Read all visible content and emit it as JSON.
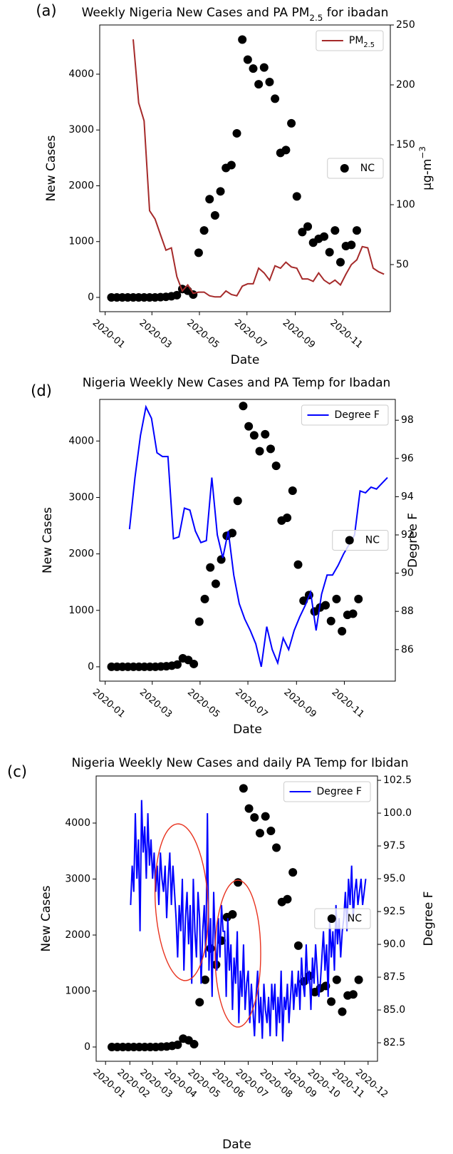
{
  "chart_data": [
    {
      "type": "line",
      "panel_label": "(a)",
      "title": "Weekly Nigeria New Cases and PA PM2.5 for ibadan",
      "xlabel": "Date",
      "ylabel": "New Cases",
      "y2label": "μg-m−3",
      "xlim": [
        -7,
        366
      ],
      "xticks": [
        {
          "value": 0,
          "label": "2020-01"
        },
        {
          "value": 60,
          "label": "2020-03"
        },
        {
          "value": 121,
          "label": "2020-05"
        },
        {
          "value": 182,
          "label": "2020-07"
        },
        {
          "value": 244,
          "label": "2020-09"
        },
        {
          "value": 305,
          "label": "2020-11"
        }
      ],
      "ylim": [
        -256,
        4882
      ],
      "yticks": [
        0,
        1000,
        2000,
        3000,
        4000
      ],
      "y2lim": [
        10.7,
        250
      ],
      "y2ticks": [
        50,
        100,
        150,
        200,
        250
      ],
      "series": [
        {
          "name": "NC",
          "type": "scatter",
          "color": "#000000",
          "legend": "center right",
          "x": [
            8,
            15,
            22,
            29,
            36,
            43,
            50,
            57,
            64,
            71,
            78,
            85,
            92,
            99,
            106,
            113,
            120,
            127,
            134,
            141,
            148,
            155,
            162,
            169,
            176,
            183,
            190,
            197,
            204,
            211,
            218,
            225,
            232,
            239,
            246,
            253,
            260,
            267,
            274,
            281,
            288,
            295,
            302,
            309,
            316,
            323
          ],
          "values": [
            0,
            0,
            0,
            0,
            0,
            0,
            0,
            0,
            0,
            5,
            10,
            20,
            40,
            150,
            120,
            50,
            800,
            1200,
            1760,
            1470,
            1900,
            2320,
            2370,
            2940,
            4620,
            4260,
            4100,
            3820,
            4120,
            3860,
            3560,
            2590,
            2640,
            3120,
            1810,
            1170,
            1270,
            980,
            1050,
            1090,
            810,
            1200,
            630,
            920,
            940,
            1200
          ]
        },
        {
          "name": "PM2.5",
          "type": "line",
          "axis": "y2",
          "color": "#a52a2a",
          "legend": "upper right",
          "x": [
            36,
            43,
            50,
            57,
            64,
            71,
            78,
            85,
            92,
            99,
            106,
            113,
            120,
            127,
            134,
            141,
            148,
            155,
            162,
            169,
            176,
            183,
            190,
            197,
            204,
            211,
            218,
            225,
            232,
            239,
            246,
            253,
            260,
            267,
            274,
            281,
            288,
            295,
            302,
            309,
            316,
            323,
            330,
            337,
            344,
            351,
            358
          ],
          "values": [
            238,
            185,
            170,
            95,
            88,
            75,
            62,
            64,
            40,
            28,
            33,
            26,
            27,
            27,
            24,
            23,
            23,
            28,
            25,
            24,
            32,
            34,
            34,
            47,
            43,
            37,
            49,
            47,
            52,
            48,
            47,
            38,
            38,
            36,
            43,
            37,
            34,
            37,
            33,
            42,
            50,
            54,
            65,
            64,
            47,
            44,
            42
          ]
        }
      ]
    },
    {
      "type": "line",
      "panel_label": "(d)",
      "title": "Nigeria Weekly New Cases and PA Temp for Ibadan",
      "xlabel": "Date",
      "ylabel": "New Cases",
      "y2label": "Degree F",
      "xlim": [
        -7,
        370
      ],
      "xticks": [
        {
          "value": 0,
          "label": "2020-01"
        },
        {
          "value": 60,
          "label": "2020-03"
        },
        {
          "value": 121,
          "label": "2020-05"
        },
        {
          "value": 182,
          "label": "2020-07"
        },
        {
          "value": 244,
          "label": "2020-09"
        },
        {
          "value": 305,
          "label": "2020-11"
        }
      ],
      "ylim": [
        -254,
        4737
      ],
      "yticks": [
        0,
        1000,
        2000,
        3000,
        4000
      ],
      "y2lim": [
        84.35,
        99.09
      ],
      "y2ticks": [
        86,
        88,
        90,
        92,
        94,
        96,
        98
      ],
      "series": [
        {
          "name": "NC",
          "type": "scatter",
          "color": "#000000",
          "legend": "center right",
          "x": [
            8,
            15,
            22,
            29,
            36,
            43,
            50,
            57,
            64,
            71,
            78,
            85,
            92,
            99,
            106,
            113,
            120,
            127,
            134,
            141,
            148,
            155,
            162,
            169,
            176,
            183,
            190,
            197,
            204,
            211,
            218,
            225,
            232,
            239,
            246,
            253,
            260,
            267,
            274,
            281,
            288,
            295,
            302,
            309,
            316,
            323
          ],
          "values": [
            0,
            0,
            0,
            0,
            0,
            0,
            0,
            0,
            0,
            5,
            10,
            20,
            40,
            150,
            120,
            50,
            800,
            1200,
            1760,
            1470,
            1900,
            2320,
            2370,
            2940,
            4620,
            4260,
            4100,
            3820,
            4120,
            3860,
            3560,
            2590,
            2640,
            3120,
            1810,
            1170,
            1270,
            980,
            1050,
            1090,
            810,
            1200,
            630,
            920,
            940,
            1200
          ]
        },
        {
          "name": "Degree F",
          "type": "line",
          "axis": "y2",
          "color": "#0000ff",
          "legend": "upper right",
          "x": [
            31,
            38,
            45,
            52,
            59,
            66,
            73,
            80,
            87,
            94,
            101,
            108,
            115,
            122,
            129,
            136,
            143,
            150,
            157,
            164,
            171,
            178,
            185,
            192,
            199,
            206,
            213,
            220,
            227,
            234,
            241,
            248,
            255,
            262,
            269,
            276,
            283,
            290,
            297,
            304,
            311,
            318,
            325,
            332,
            339,
            346,
            353,
            360
          ],
          "values": [
            92.3,
            95.0,
            97.2,
            98.7,
            98.1,
            96.3,
            96.1,
            96.1,
            91.8,
            91.9,
            93.4,
            93.3,
            92.2,
            91.6,
            91.7,
            95.0,
            92.0,
            90.8,
            92.2,
            89.9,
            88.4,
            87.6,
            87.0,
            86.3,
            85.1,
            87.2,
            86.0,
            85.3,
            86.6,
            86.0,
            87.0,
            87.7,
            88.3,
            89.0,
            87.0,
            88.9,
            89.9,
            89.9,
            90.4,
            91.0,
            91.5,
            92.0,
            94.3,
            94.2,
            94.5,
            94.4,
            94.7,
            95.0
          ]
        }
      ]
    },
    {
      "type": "line",
      "panel_label": "(c)",
      "title": "Nigeria Weekly New Cases and daily PA Temp for Ibidan",
      "xlabel": "Date",
      "ylabel": "New Cases",
      "y2label": "Degree F",
      "xlim": [
        -12,
        347
      ],
      "xticks": [
        {
          "value": 0,
          "label": "2020-01"
        },
        {
          "value": 31,
          "label": "2020-02"
        },
        {
          "value": 60,
          "label": "2020-03"
        },
        {
          "value": 91,
          "label": "2020-04"
        },
        {
          "value": 121,
          "label": "2020-05"
        },
        {
          "value": 152,
          "label": "2020-06"
        },
        {
          "value": 182,
          "label": "2020-07"
        },
        {
          "value": 213,
          "label": "2020-08"
        },
        {
          "value": 244,
          "label": "2020-09"
        },
        {
          "value": 274,
          "label": "2020-10"
        },
        {
          "value": 305,
          "label": "2020-11"
        },
        {
          "value": 335,
          "label": "2020-12"
        }
      ],
      "ylim": [
        -255,
        4841
      ],
      "yticks": [
        0,
        1000,
        2000,
        3000,
        4000
      ],
      "y2lim": [
        81.09,
        102.83
      ],
      "y2ticks": [
        82.5,
        {
          "value": 85,
          "label": "85.0"
        },
        87.5,
        {
          "value": 90,
          "label": "90.0"
        },
        92.5,
        {
          "value": 95,
          "label": "95.0"
        },
        97.5,
        {
          "value": 100,
          "label": "100.0"
        },
        102.5
      ],
      "series": [
        {
          "name": "NC",
          "type": "scatter",
          "color": "#000000",
          "legend": "center right",
          "x": [
            8,
            15,
            22,
            29,
            36,
            43,
            50,
            57,
            64,
            71,
            78,
            85,
            92,
            99,
            106,
            113,
            120,
            127,
            134,
            141,
            148,
            155,
            162,
            169,
            176,
            183,
            190,
            197,
            204,
            211,
            218,
            225,
            232,
            239,
            246,
            253,
            260,
            267,
            274,
            281,
            288,
            295,
            302,
            309,
            316,
            323
          ],
          "values": [
            0,
            0,
            0,
            0,
            0,
            0,
            0,
            0,
            0,
            5,
            10,
            20,
            40,
            150,
            120,
            50,
            800,
            1200,
            1760,
            1470,
            1900,
            2320,
            2370,
            2940,
            4620,
            4260,
            4100,
            3820,
            4120,
            3860,
            3560,
            2590,
            2640,
            3120,
            1810,
            1170,
            1270,
            980,
            1050,
            1090,
            810,
            1200,
            630,
            920,
            940,
            1200
          ]
        },
        {
          "name": "Degree F",
          "type": "line",
          "axis": "y2",
          "color": "#0000ff",
          "legend": "upper right",
          "x": [
            32,
            34,
            36,
            38,
            40,
            42,
            44,
            46,
            48,
            50,
            52,
            54,
            56,
            58,
            60,
            62,
            64,
            66,
            68,
            70,
            72,
            74,
            76,
            78,
            80,
            82,
            84,
            86,
            88,
            90,
            92,
            94,
            96,
            98,
            100,
            102,
            104,
            106,
            108,
            110,
            112,
            114,
            116,
            118,
            120,
            122,
            124,
            126,
            128,
            130,
            132,
            134,
            136,
            138,
            140,
            142,
            144,
            146,
            148,
            150,
            152,
            154,
            156,
            158,
            160,
            162,
            164,
            166,
            168,
            170,
            172,
            174,
            176,
            178,
            180,
            182,
            184,
            186,
            188,
            190,
            192,
            194,
            196,
            198,
            200,
            202,
            204,
            206,
            208,
            210,
            212,
            214,
            216,
            218,
            220,
            222,
            224,
            226,
            228,
            230,
            232,
            234,
            236,
            238,
            240,
            242,
            244,
            246,
            248,
            250,
            252,
            254,
            256,
            258,
            260,
            262,
            264,
            266,
            268,
            270,
            272,
            274,
            276,
            278,
            280,
            282,
            284,
            286,
            288,
            290,
            292,
            294,
            296,
            298,
            300,
            302,
            304,
            306,
            308,
            310,
            312,
            314,
            316,
            318,
            320,
            322,
            324,
            326,
            328,
            330,
            332
          ],
          "values": [
            93,
            96,
            94,
            100,
            95,
            98,
            91,
            101,
            97,
            99,
            95,
            100,
            96,
            98,
            95,
            97,
            94,
            96,
            93,
            97,
            95,
            94,
            96,
            92,
            95,
            97,
            93,
            96,
            94,
            92,
            89,
            93,
            91,
            95,
            88,
            92,
            94,
            90,
            93,
            87,
            95,
            91,
            89,
            94,
            92,
            87,
            91,
            93,
            89,
            100,
            88,
            92,
            86,
            94,
            90,
            88,
            92,
            89,
            93,
            91,
            91,
            86,
            92,
            88,
            90,
            85,
            89,
            87,
            91,
            84,
            88,
            86,
            90,
            85,
            87,
            88,
            84,
            87,
            85,
            83,
            86,
            88,
            84,
            86,
            82.8,
            87,
            85,
            84,
            86,
            83,
            87,
            85,
            87,
            83,
            86,
            84,
            88,
            82.6,
            86,
            85,
            87,
            84,
            86,
            88,
            85,
            87,
            86,
            88,
            85,
            89,
            87,
            86,
            90,
            87,
            88,
            85,
            89,
            87,
            90,
            88,
            86,
            87,
            89,
            91,
            88,
            90,
            86,
            92,
            89,
            91,
            88,
            93,
            90,
            92,
            89,
            91,
            92,
            94,
            91,
            95,
            93,
            96,
            92,
            94,
            95,
            93,
            94,
            95,
            93,
            94,
            95
          ]
        }
      ]
    }
  ]
}
